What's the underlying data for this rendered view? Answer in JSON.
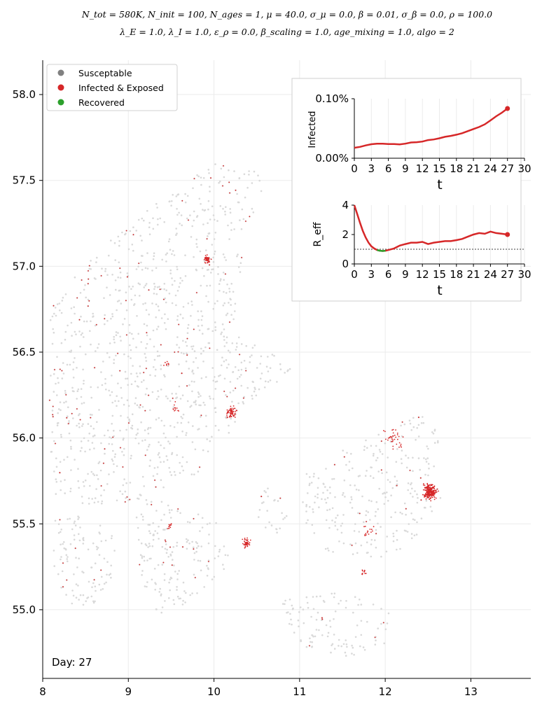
{
  "title": {
    "line1": "N_tot = 580K, N_init = 100, N_ages = 1, μ = 40.0, σ_μ = 0.0, β = 0.01, σ_β = 0.0, ρ = 100.0",
    "line2": "λ_E = 1.0, λ_I = 1.0, ε_ρ = 0.0, β_scaling = 1.0, age_mixing = 1.0, algo = 2"
  },
  "day_label": "Day: 27",
  "colors": {
    "susceptable": "#808080",
    "infected": "#d62728",
    "recovered": "#2ca02c",
    "map_dots": "#d9d9d9",
    "grid": "#ebebeb"
  },
  "legend": [
    {
      "label": "Susceptable",
      "color": "#808080"
    },
    {
      "label": "Infected & Exposed",
      "color": "#d62728"
    },
    {
      "label": "Recovered",
      "color": "#2ca02c"
    }
  ],
  "chart_data": [
    {
      "type": "scatter",
      "name": "map",
      "xlim": [
        8.0,
        13.7
      ],
      "ylim": [
        54.6,
        58.2
      ],
      "xticks": [
        "8",
        "9",
        "10",
        "11",
        "12",
        "13"
      ],
      "yticks": [
        "55.0",
        "55.5",
        "56.0",
        "56.5",
        "57.0",
        "57.5",
        "58.0"
      ],
      "grid": true,
      "legend_position": "top-left",
      "infected_clusters": [
        {
          "lon": 12.52,
          "lat": 55.69,
          "spread": 0.08,
          "count": 220
        },
        {
          "lon": 10.2,
          "lat": 56.15,
          "spread": 0.06,
          "count": 60
        },
        {
          "lon": 9.92,
          "lat": 57.04,
          "spread": 0.04,
          "count": 45
        },
        {
          "lon": 10.38,
          "lat": 55.39,
          "spread": 0.05,
          "count": 40
        },
        {
          "lon": 11.75,
          "lat": 55.22,
          "spread": 0.03,
          "count": 12
        },
        {
          "lon": 9.45,
          "lat": 56.43,
          "spread": 0.04,
          "count": 8
        },
        {
          "lon": 9.55,
          "lat": 56.18,
          "spread": 0.05,
          "count": 12
        },
        {
          "lon": 9.47,
          "lat": 55.49,
          "spread": 0.04,
          "count": 10
        },
        {
          "lon": 12.1,
          "lat": 56.0,
          "spread": 0.12,
          "count": 35
        },
        {
          "lon": 11.8,
          "lat": 55.45,
          "spread": 0.1,
          "count": 15
        }
      ],
      "infected_scattered": 150
    },
    {
      "type": "line",
      "name": "infected-inset",
      "xlabel": "t",
      "ylabel": "Infected",
      "xticks": [
        "0",
        "3",
        "6",
        "9",
        "12",
        "15",
        "18",
        "21",
        "24",
        "27",
        "30"
      ],
      "yticks": [
        "0.00%",
        "0.10%"
      ],
      "xlim": [
        0,
        30
      ],
      "ylim": [
        0,
        0.1
      ],
      "x": [
        0,
        1,
        2,
        3,
        4,
        5,
        6,
        7,
        8,
        9,
        10,
        11,
        12,
        13,
        14,
        15,
        16,
        17,
        18,
        19,
        20,
        21,
        22,
        23,
        24,
        25,
        26,
        27
      ],
      "y": [
        0.0175,
        0.019,
        0.0215,
        0.0235,
        0.0245,
        0.0245,
        0.0238,
        0.0238,
        0.0232,
        0.0245,
        0.0265,
        0.027,
        0.028,
        0.0305,
        0.0315,
        0.0335,
        0.036,
        0.0375,
        0.0395,
        0.042,
        0.0455,
        0.049,
        0.0525,
        0.057,
        0.0635,
        0.0705,
        0.0765,
        0.0835
      ],
      "grid": true
    },
    {
      "type": "line",
      "name": "reff-inset",
      "xlabel": "t",
      "ylabel": "R_eff",
      "xticks": [
        "0",
        "3",
        "6",
        "9",
        "12",
        "15",
        "18",
        "21",
        "24",
        "27",
        "30"
      ],
      "yticks": [
        "0",
        "2",
        "4"
      ],
      "xlim": [
        0,
        30
      ],
      "ylim": [
        0,
        4
      ],
      "reference_line": 1.0,
      "x": [
        0,
        0.5,
        1,
        1.5,
        2,
        2.5,
        3,
        3.5,
        4,
        4.5,
        5,
        5.5,
        6,
        7,
        8,
        9,
        10,
        11,
        12,
        13,
        14,
        15,
        16,
        17,
        18,
        19,
        20,
        21,
        22,
        23,
        24,
        25,
        26,
        27
      ],
      "y": [
        4.0,
        3.4,
        2.8,
        2.25,
        1.8,
        1.45,
        1.2,
        1.05,
        0.95,
        0.9,
        0.88,
        0.9,
        0.95,
        1.05,
        1.25,
        1.35,
        1.45,
        1.45,
        1.5,
        1.35,
        1.45,
        1.5,
        1.55,
        1.55,
        1.62,
        1.7,
        1.85,
        2.0,
        2.1,
        2.05,
        2.2,
        2.1,
        2.05,
        2.0
      ],
      "green_range": [
        4,
        5.7
      ],
      "grid": true
    }
  ]
}
